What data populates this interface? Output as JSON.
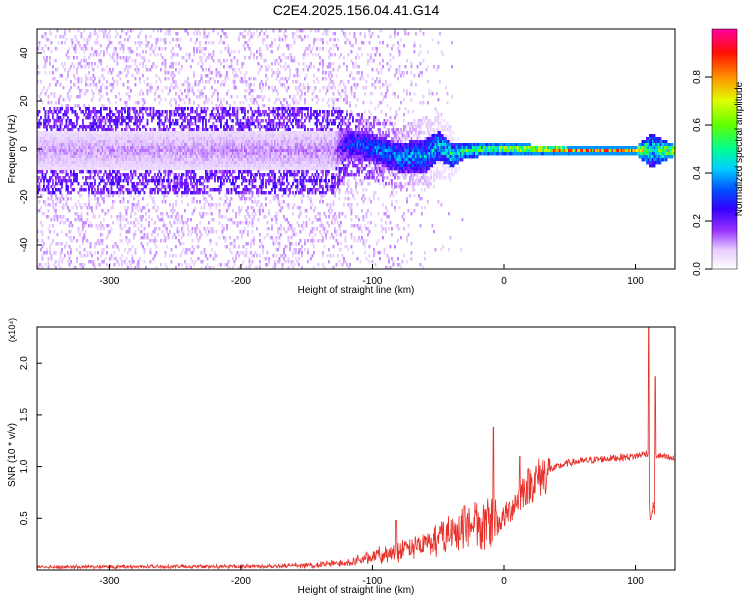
{
  "title": "C2E4.2025.156.04.41.G14",
  "chart_data": [
    {
      "type": "heatmap",
      "xlabel": "Height of straight line (km)",
      "ylabel": "Frequency (Hz)",
      "xlim": [
        -355,
        130
      ],
      "ylim": [
        -50,
        50
      ],
      "xticks": [
        -300,
        -200,
        -100,
        0,
        100
      ],
      "yticks": [
        -40,
        -20,
        0,
        20,
        40
      ],
      "colorbar": {
        "label": "Normalized spectral amplitude",
        "range": [
          0.0,
          1.0
        ],
        "ticks": [
          "0.0",
          "0.2",
          "0.4",
          "0.6",
          "0.8"
        ],
        "colormap": [
          "#ffffff",
          "#d9b8f5",
          "#7a00ff",
          "#0000ff",
          "#00c8ff",
          "#00ff80",
          "#c8ff00",
          "#ff8000",
          "#ff0000",
          "#ff00a0"
        ]
      },
      "band_profile": [
        {
          "x": -355,
          "center": 0,
          "halfwidth": 8,
          "amplitude": 0.12
        },
        {
          "x": -130,
          "center": 0,
          "halfwidth": 8,
          "amplitude": 0.14
        },
        {
          "x": -120,
          "center": 3,
          "halfwidth": 6,
          "amplitude": 0.35
        },
        {
          "x": -100,
          "center": 1,
          "halfwidth": 6,
          "amplitude": 0.4
        },
        {
          "x": -80,
          "center": -3,
          "halfwidth": 6,
          "amplitude": 0.45
        },
        {
          "x": -60,
          "center": -2,
          "halfwidth": 7,
          "amplitude": 0.45
        },
        {
          "x": -50,
          "center": 2,
          "halfwidth": 6,
          "amplitude": 0.5
        },
        {
          "x": -40,
          "center": -2,
          "halfwidth": 5,
          "amplitude": 0.55
        },
        {
          "x": -30,
          "center": 0,
          "halfwidth": 3,
          "amplitude": 0.6
        },
        {
          "x": 0,
          "center": 1,
          "halfwidth": 2.5,
          "amplitude": 0.75
        },
        {
          "x": 20,
          "center": 0.5,
          "halfwidth": 2,
          "amplitude": 0.85
        },
        {
          "x": 60,
          "center": 0,
          "halfwidth": 2,
          "amplitude": 0.9
        },
        {
          "x": 100,
          "center": 0,
          "halfwidth": 2,
          "amplitude": 0.9
        },
        {
          "x": 112,
          "center": 0,
          "halfwidth": 7,
          "amplitude": 0.5
        },
        {
          "x": 130,
          "center": 0,
          "halfwidth": 2,
          "amplitude": 0.9
        }
      ],
      "notes": "Broad noisy purple spread for x < -130; narrow green/orange/red band centred near 0 Hz for x > -30"
    },
    {
      "type": "line",
      "xlabel": "Height of straight line (km)",
      "ylabel": "SNR (10 * v/v)",
      "y_multiplier": "(x10⁴)",
      "xlim": [
        -355,
        130
      ],
      "ylim": [
        0,
        23500
      ],
      "xticks": [
        -300,
        -200,
        -100,
        0,
        100
      ],
      "yticks": [
        5000,
        10000,
        15000,
        20000
      ],
      "ytick_labels": [
        "0.5",
        "1.0",
        "1.5",
        "2.0"
      ],
      "color": "#e8302a",
      "envelope": [
        {
          "x": -355,
          "y": 300
        },
        {
          "x": -200,
          "y": 350
        },
        {
          "x": -150,
          "y": 450
        },
        {
          "x": -120,
          "y": 700
        },
        {
          "x": -100,
          "y": 1300
        },
        {
          "x": -80,
          "y": 1800
        },
        {
          "x": -60,
          "y": 2500
        },
        {
          "x": -40,
          "y": 3500
        },
        {
          "x": -20,
          "y": 4500
        },
        {
          "x": -5,
          "y": 4500
        },
        {
          "x": 5,
          "y": 6000
        },
        {
          "x": 15,
          "y": 8000
        },
        {
          "x": 30,
          "y": 9500
        },
        {
          "x": 50,
          "y": 10400
        },
        {
          "x": 80,
          "y": 10800
        },
        {
          "x": 100,
          "y": 11000
        },
        {
          "x": 108,
          "y": 11300
        },
        {
          "x": 130,
          "y": 10700
        }
      ],
      "spikes": [
        {
          "x": -82,
          "y": 4800
        },
        {
          "x": -30,
          "y": 6200
        },
        {
          "x": -8,
          "y": 13800
        },
        {
          "x": 12,
          "y": 11000
        },
        {
          "x": 110,
          "y": 23500
        },
        {
          "x": 113,
          "y": 4800
        },
        {
          "x": 115,
          "y": 18700
        }
      ]
    }
  ]
}
